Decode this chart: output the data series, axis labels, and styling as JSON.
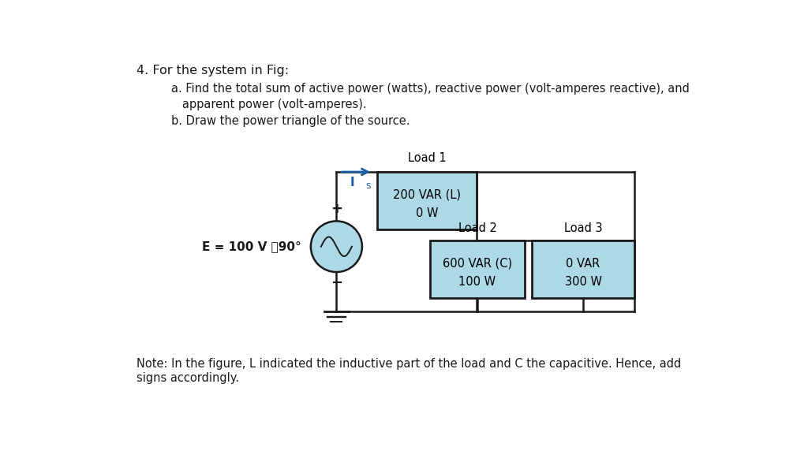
{
  "background_color": "#ffffff",
  "title_text": "4. For the system in Fig:",
  "subtitle_lines": [
    "a. Find the total sum of active power (watts), reactive power (volt-amperes reactive), and",
    "   apparent power (volt-amperes).",
    "b. Draw the power triangle of the source."
  ],
  "note_lines": [
    "Note: In the figure, L indicated the inductive part of the load and C the capacitive. Hence, add",
    "signs accordingly."
  ],
  "load1_label": "Load 1",
  "load1_line1": "200 VAR (L)",
  "load1_line2": "0 W",
  "load2_label": "Load 2",
  "load2_line1": "600 VAR (C)",
  "load2_line2": "100 W",
  "load3_label": "Load 3",
  "load3_line1": "0 VAR",
  "load3_line2": "300 W",
  "source_label": "E = 100 V ⤀90°",
  "current_label": "I",
  "current_sub": "s",
  "box_fill_color": "#add8e6",
  "box_edge_color": "#1a1a1a",
  "wire_color": "#1a1a1a",
  "arrow_color": "#1a5fa8",
  "source_fill_color": "#add8e6",
  "source_edge_color": "#1a1a1a",
  "plus_minus_color": "#1a1a1a",
  "ground_color": "#1a1a1a",
  "text_color": "#1a1a1a"
}
